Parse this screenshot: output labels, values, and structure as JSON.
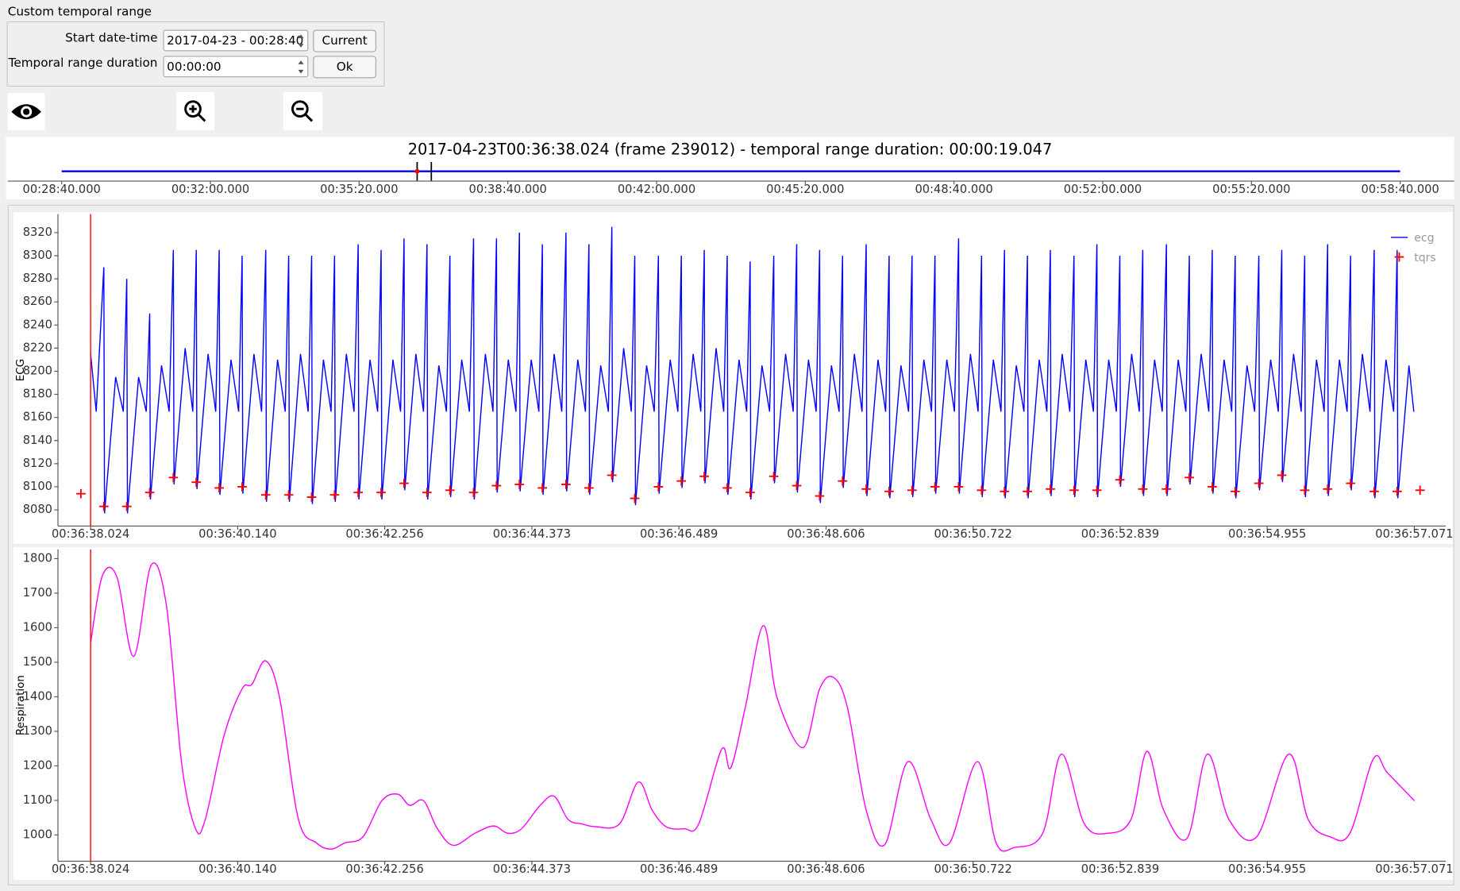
{
  "panel": {
    "title": "Custom temporal range",
    "start_label": "Start date-time",
    "start_value": "2017-04-23 - 00:28:40",
    "duration_label": "Temporal range duration",
    "duration_value": "00:00:00",
    "current_button": "Current",
    "ok_button": "Ok"
  },
  "timeline": {
    "title": "2017-04-23T00:36:38.024 (frame 239012) - temporal range duration: 00:00:19.047",
    "color": "#0000ff",
    "xlim": [
      0,
      1800
    ],
    "xticks": [
      {
        "value": 0,
        "label": "00:28:40.000"
      },
      {
        "value": 200,
        "label": "00:32:00.000"
      },
      {
        "value": 400,
        "label": "00:35:20.000"
      },
      {
        "value": 600,
        "label": "00:38:40.000"
      },
      {
        "value": 800,
        "label": "00:42:00.000"
      },
      {
        "value": 1000,
        "label": "00:45:20.000"
      },
      {
        "value": 1200,
        "label": "00:48:40.000"
      },
      {
        "value": 1400,
        "label": "00:52:00.000"
      },
      {
        "value": 1600,
        "label": "00:55:20.000"
      },
      {
        "value": 1800,
        "label": "00:58:40.000"
      }
    ],
    "cursor": 478.024,
    "range": [
      478.024,
      497.071
    ]
  },
  "chart_data": [
    {
      "type": "line",
      "ylabel": "ECG",
      "xlim": [
        -0.47,
        19.5
      ],
      "ylim": [
        8066,
        8336
      ],
      "xticks": [
        {
          "value": 0,
          "label": "00:36:38.024"
        },
        {
          "value": 2.116,
          "label": "00:36:40.140"
        },
        {
          "value": 4.232,
          "label": "00:36:42.256"
        },
        {
          "value": 6.349,
          "label": "00:36:44.373"
        },
        {
          "value": 8.465,
          "label": "00:36:46.489"
        },
        {
          "value": 10.582,
          "label": "00:36:48.606"
        },
        {
          "value": 12.698,
          "label": "00:36:50.722"
        },
        {
          "value": 14.815,
          "label": "00:36:52.839"
        },
        {
          "value": 16.931,
          "label": "00:36:54.955"
        },
        {
          "value": 19.047,
          "label": "00:36:57.071"
        }
      ],
      "yticks": [
        8080,
        8100,
        8120,
        8140,
        8160,
        8180,
        8200,
        8220,
        8240,
        8260,
        8280,
        8300,
        8320
      ],
      "legend": "upper right",
      "cursor": 0,
      "series": [
        {
          "name": "ecg",
          "color": "#0000ff",
          "x": [
            0,
            0.08,
            0.19,
            0.2,
            0.36,
            0.47,
            0.52,
            0.53,
            0.69,
            0.8,
            0.85,
            0.86,
            1.02,
            1.13,
            1.19,
            1.2,
            1.36,
            1.47,
            1.52,
            1.53,
            1.69,
            1.8,
            1.85,
            1.86,
            2.02,
            2.13,
            2.18,
            2.19,
            2.35,
            2.46,
            2.52,
            2.53,
            2.69,
            2.8,
            2.85,
            2.86,
            3.02,
            3.13,
            3.18,
            3.19,
            3.35,
            3.46,
            3.51,
            3.52,
            3.68,
            3.79,
            3.85,
            3.86,
            4.02,
            4.13,
            4.18,
            4.19,
            4.35,
            4.46,
            4.51,
            4.52,
            4.68,
            4.79,
            4.84,
            4.85,
            5.01,
            5.12,
            5.17,
            5.18,
            5.34,
            5.45,
            5.51,
            5.52,
            5.68,
            5.79,
            5.84,
            5.85,
            6.01,
            6.12,
            6.17,
            6.18,
            6.34,
            6.45,
            6.5,
            6.51,
            6.67,
            6.78,
            6.84,
            6.85,
            7.01,
            7.12,
            7.17,
            7.18,
            7.34,
            7.45,
            7.5,
            7.51,
            7.67,
            7.78,
            7.83,
            7.84,
            8,
            8.11,
            8.17,
            8.18,
            8.34,
            8.45,
            8.5,
            8.51,
            8.67,
            8.78,
            8.83,
            8.84,
            9,
            9.11,
            9.16,
            9.17,
            9.33,
            9.44,
            9.49,
            9.5,
            9.66,
            9.77,
            9.83,
            9.84,
            10,
            10.11,
            10.16,
            10.17,
            10.33,
            10.44,
            10.49,
            10.5,
            10.66,
            10.77,
            10.82,
            10.83,
            10.99,
            11.1,
            11.16,
            11.17,
            11.33,
            11.44,
            11.49,
            11.5,
            11.66,
            11.77,
            11.82,
            11.83,
            11.99,
            12.1,
            12.15,
            12.16,
            12.32,
            12.43,
            12.49,
            12.5,
            12.66,
            12.77,
            12.82,
            12.83,
            12.99,
            13.1,
            13.15,
            13.16,
            13.32,
            13.43,
            13.48,
            13.49,
            13.65,
            13.76,
            13.81,
            13.82,
            13.98,
            14.09,
            14.15,
            14.16,
            14.32,
            14.43,
            14.48,
            14.49,
            14.65,
            14.76,
            14.81,
            14.82,
            14.98,
            15.09,
            15.14,
            15.15,
            15.31,
            15.42,
            15.48,
            15.49,
            15.65,
            15.76,
            15.81,
            15.82,
            15.98,
            16.09,
            16.14,
            16.15,
            16.31,
            16.42,
            16.47,
            16.48,
            16.64,
            16.75,
            16.81,
            16.82,
            16.98,
            17.09,
            17.14,
            17.15,
            17.31,
            17.42,
            17.47,
            17.48,
            17.64,
            17.75,
            17.8,
            17.81,
            17.97,
            18.08,
            18.13,
            18.14,
            18.3,
            18.41,
            18.47,
            18.48,
            18.64,
            18.75,
            18.8,
            18.81,
            18.97,
            19.04
          ],
          "values": [
            8215,
            8165,
            8290,
            8077,
            8195,
            8165,
            8280,
            8077,
            8195,
            8165,
            8250,
            8089,
            8205,
            8165,
            8305,
            8102,
            8220,
            8165,
            8305,
            8098,
            8215,
            8165,
            8305,
            8093,
            8210,
            8165,
            8300,
            8094,
            8215,
            8165,
            8305,
            8087,
            8210,
            8165,
            8300,
            8087,
            8215,
            8165,
            8300,
            8085,
            8210,
            8165,
            8300,
            8087,
            8215,
            8165,
            8310,
            8089,
            8210,
            8165,
            8305,
            8089,
            8210,
            8165,
            8315,
            8097,
            8215,
            8165,
            8310,
            8089,
            8205,
            8165,
            8300,
            8091,
            8210,
            8165,
            8315,
            8089,
            8215,
            8165,
            8315,
            8095,
            8210,
            8165,
            8320,
            8096,
            8210,
            8165,
            8310,
            8093,
            8215,
            8165,
            8320,
            8096,
            8210,
            8165,
            8310,
            8093,
            8205,
            8165,
            8325,
            8104,
            8220,
            8165,
            8300,
            8084,
            8205,
            8165,
            8300,
            8094,
            8210,
            8165,
            8300,
            8099,
            8215,
            8165,
            8305,
            8103,
            8220,
            8165,
            8300,
            8093,
            8210,
            8165,
            8295,
            8089,
            8205,
            8165,
            8300,
            8103,
            8215,
            8165,
            8310,
            8095,
            8210,
            8165,
            8305,
            8086,
            8205,
            8165,
            8300,
            8099,
            8215,
            8165,
            8310,
            8092,
            8210,
            8165,
            8300,
            8090,
            8205,
            8165,
            8300,
            8091,
            8210,
            8165,
            8300,
            8094,
            8210,
            8165,
            8315,
            8094,
            8215,
            8165,
            8300,
            8091,
            8210,
            8165,
            8305,
            8090,
            8205,
            8165,
            8300,
            8090,
            8210,
            8165,
            8305,
            8092,
            8215,
            8165,
            8300,
            8091,
            8210,
            8165,
            8310,
            8091,
            8210,
            8165,
            8300,
            8100,
            8215,
            8165,
            8305,
            8092,
            8210,
            8165,
            8310,
            8092,
            8210,
            8165,
            8300,
            8102,
            8215,
            8165,
            8305,
            8094,
            8210,
            8165,
            8300,
            8090,
            8205,
            8165,
            8300,
            8097,
            8210,
            8165,
            8305,
            8104,
            8215,
            8165,
            8300,
            8091,
            8210,
            8165,
            8310,
            8092,
            8210,
            8165,
            8300,
            8097,
            8215,
            8165,
            8305,
            8090,
            8210,
            8165,
            8305,
            8090,
            8205,
            8165
          ]
        },
        {
          "name": "tqrs",
          "color": "#ff0000",
          "marker": "+",
          "x": [
            -0.14,
            0.19,
            0.52,
            0.85,
            1.19,
            1.52,
            1.85,
            2.18,
            2.52,
            2.85,
            3.18,
            3.51,
            3.85,
            4.18,
            4.51,
            4.84,
            5.17,
            5.51,
            5.84,
            6.17,
            6.5,
            6.84,
            7.17,
            7.5,
            7.83,
            8.17,
            8.5,
            8.83,
            9.16,
            9.49,
            9.83,
            10.16,
            10.49,
            10.82,
            11.16,
            11.49,
            11.82,
            12.15,
            12.49,
            12.82,
            13.15,
            13.48,
            13.81,
            14.15,
            14.48,
            14.81,
            15.14,
            15.48,
            15.81,
            16.14,
            16.47,
            16.81,
            17.14,
            17.47,
            17.8,
            18.13,
            18.47,
            18.8,
            19.13
          ],
          "values": [
            8094,
            8083,
            8083,
            8095,
            8108,
            8104,
            8099,
            8100,
            8093,
            8093,
            8091,
            8093,
            8095,
            8095,
            8103,
            8095,
            8097,
            8095,
            8101,
            8102,
            8099,
            8102,
            8099,
            8110,
            8090,
            8100,
            8105,
            8109,
            8099,
            8095,
            8109,
            8101,
            8092,
            8105,
            8098,
            8096,
            8097,
            8100,
            8100,
            8097,
            8096,
            8096,
            8098,
            8097,
            8097,
            8106,
            8098,
            8098,
            8108,
            8100,
            8096,
            8103,
            8110,
            8097,
            8098,
            8103,
            8096,
            8096,
            8097
          ]
        }
      ]
    },
    {
      "type": "line",
      "ylabel": "Respiration",
      "xlim": [
        -0.47,
        19.5
      ],
      "ylim": [
        924,
        1827
      ],
      "smooth": true,
      "cursor": 0,
      "xticks": [
        {
          "value": 0,
          "label": "00:36:38.024"
        },
        {
          "value": 2.116,
          "label": "00:36:40.140"
        },
        {
          "value": 4.232,
          "label": "00:36:42.256"
        },
        {
          "value": 6.349,
          "label": "00:36:44.373"
        },
        {
          "value": 8.465,
          "label": "00:36:46.489"
        },
        {
          "value": 10.582,
          "label": "00:36:48.606"
        },
        {
          "value": 12.698,
          "label": "00:36:50.722"
        },
        {
          "value": 14.815,
          "label": "00:36:52.839"
        },
        {
          "value": 16.931,
          "label": "00:36:54.955"
        },
        {
          "value": 19.047,
          "label": "00:36:57.071"
        }
      ],
      "yticks": [
        1000,
        1100,
        1200,
        1300,
        1400,
        1500,
        1600,
        1700,
        1800
      ],
      "series": [
        {
          "color": "#ff00ff",
          "x": [
            0,
            0.17,
            0.38,
            0.62,
            0.87,
            1.09,
            1.31,
            1.51,
            1.65,
            1.92,
            2.18,
            2.32,
            2.52,
            2.72,
            2.99,
            3.25,
            3.46,
            3.66,
            3.92,
            4.19,
            4.42,
            4.59,
            4.79,
            4.99,
            5.22,
            5.53,
            5.8,
            6,
            6.2,
            6.47,
            6.67,
            6.87,
            7.07,
            7.27,
            7.61,
            7.88,
            8.08,
            8.28,
            8.54,
            8.75,
            9.08,
            9.21,
            9.42,
            9.68,
            9.88,
            10.25,
            10.49,
            10.69,
            10.89,
            11.16,
            11.43,
            11.76,
            12.09,
            12.36,
            12.76,
            13.03,
            13.3,
            13.7,
            13.97,
            14.3,
            14.64,
            14.97,
            15.2,
            15.44,
            15.78,
            16.07,
            16.38,
            16.78,
            17.24,
            17.52,
            17.83,
            18.12,
            18.46,
            18.66,
            19.05
          ],
          "values": [
            1557,
            1751,
            1746,
            1517,
            1781,
            1665,
            1207,
            1018,
            1045,
            1288,
            1423,
            1436,
            1504,
            1396,
            1045,
            977,
            959,
            977,
            995,
            1099,
            1118,
            1086,
            1099,
            1018,
            970,
            1005,
            1026,
            1005,
            1018,
            1086,
            1112,
            1045,
            1032,
            1024,
            1032,
            1153,
            1072,
            1024,
            1018,
            1032,
            1248,
            1194,
            1369,
            1606,
            1396,
            1253,
            1423,
            1456,
            1369,
            1072,
            973,
            1212,
            1045,
            977,
            1212,
            977,
            964,
            1005,
            1234,
            1032,
            1005,
            1045,
            1242,
            1072,
            991,
            1234,
            1045,
            995,
            1234,
            1045,
            995,
            1005,
            1221,
            1180,
            1099
          ]
        }
      ]
    }
  ]
}
